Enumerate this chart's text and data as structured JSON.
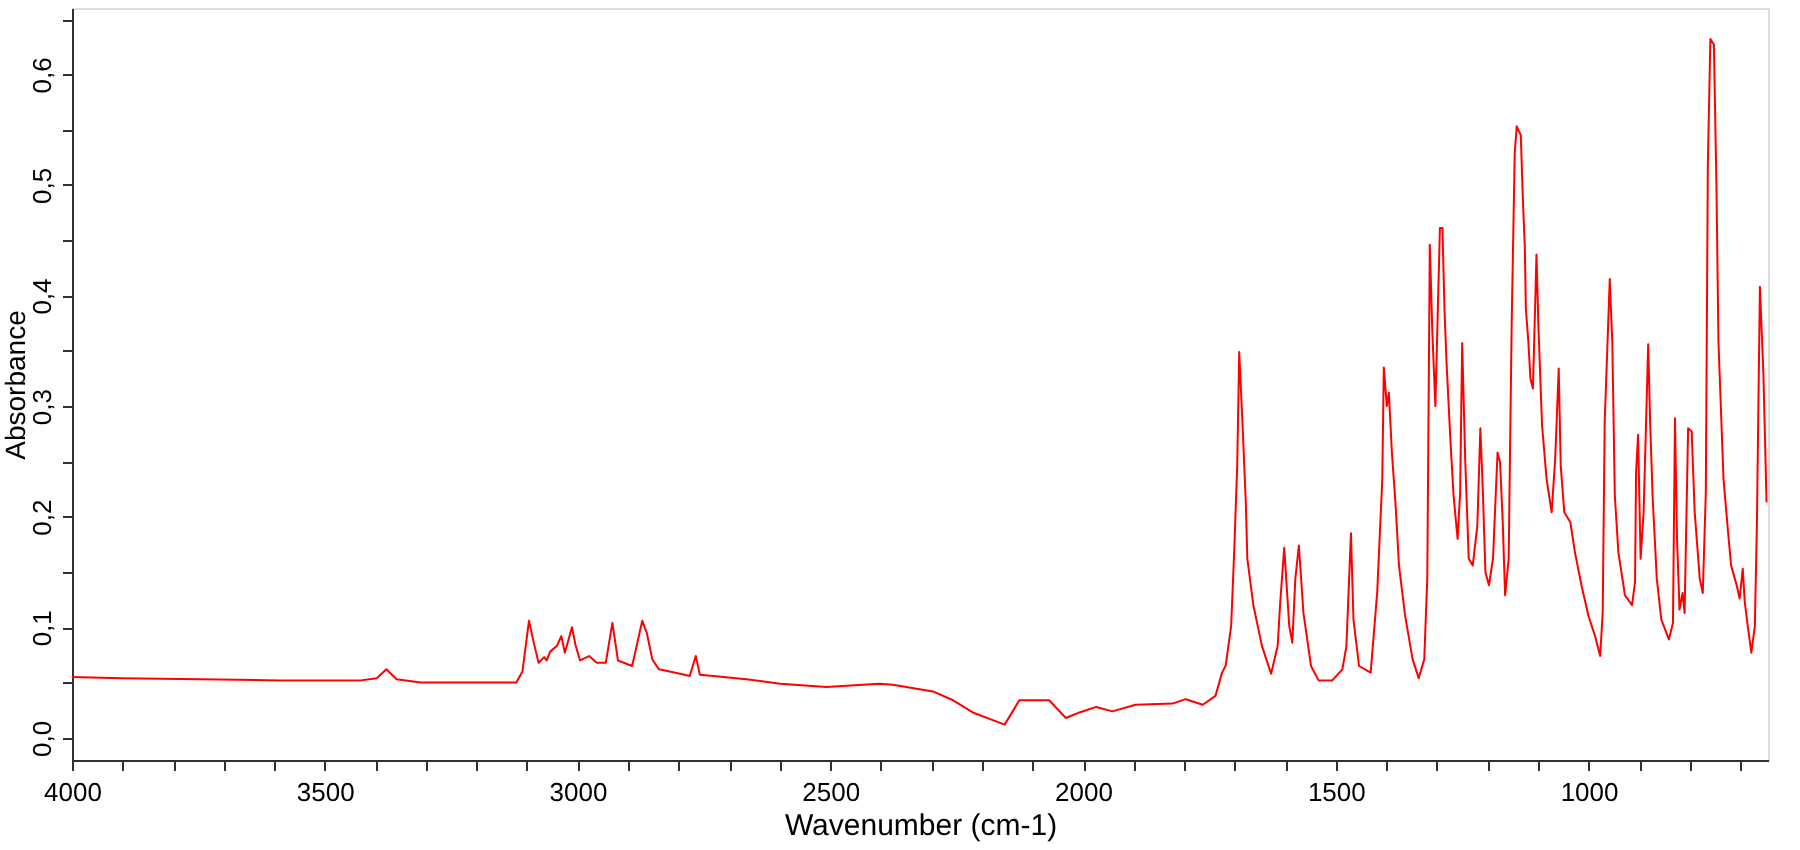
{
  "chart_data": {
    "type": "line",
    "xlabel": "Wavenumber (cm-1)",
    "ylabel": "Absorbance",
    "xlim": [
      4000,
      645
    ],
    "ylim": [
      -0.02,
      0.66
    ],
    "xticks": [
      4000,
      {
        "value": 3900,
        "label": null
      },
      {
        "value": 3800,
        "label": null
      },
      {
        "value": 3700,
        "label": null
      },
      {
        "value": 3600,
        "label": null
      },
      3500,
      {
        "value": 3400,
        "label": null
      },
      {
        "value": 3300,
        "label": null
      },
      {
        "value": 3200,
        "label": null
      },
      {
        "value": 3100,
        "label": null
      },
      3000,
      {
        "value": 2900,
        "label": null
      },
      {
        "value": 2800,
        "label": null
      },
      {
        "value": 2700,
        "label": null
      },
      {
        "value": 2600,
        "label": null
      },
      2500,
      {
        "value": 2400,
        "label": null
      },
      {
        "value": 2300,
        "label": null
      },
      {
        "value": 2200,
        "label": null
      },
      {
        "value": 2100,
        "label": null
      },
      2000,
      {
        "value": 1900,
        "label": null
      },
      {
        "value": 1800,
        "label": null
      },
      {
        "value": 1700,
        "label": null
      },
      {
        "value": 1600,
        "label": null
      },
      1500,
      {
        "value": 1400,
        "label": null
      },
      {
        "value": 1300,
        "label": null
      },
      {
        "value": 1200,
        "label": null
      },
      {
        "value": 1100,
        "label": null
      },
      1000,
      {
        "value": 900,
        "label": null
      },
      {
        "value": 800,
        "label": null
      },
      {
        "value": 700,
        "label": null
      }
    ],
    "yticks": [
      {
        "value": 0,
        "label": "0,0"
      },
      {
        "value": 0.05,
        "label": null
      },
      {
        "value": 0.1,
        "label": "0,1"
      },
      {
        "value": 0.15,
        "label": null
      },
      {
        "value": 0.2,
        "label": "0,2"
      },
      {
        "value": 0.25,
        "label": null
      },
      {
        "value": 0.3,
        "label": "0,3"
      },
      {
        "value": 0.35,
        "label": null
      },
      {
        "value": 0.4,
        "label": "0,4"
      },
      {
        "value": 0.45,
        "label": null
      },
      {
        "value": 0.5,
        "label": "0,5"
      },
      {
        "value": 0.55,
        "label": null
      },
      {
        "value": 0.6,
        "label": "0,6"
      },
      {
        "value": 0.65,
        "label": null
      }
    ],
    "x": [
      4000,
      3902,
      3745,
      3587,
      3429,
      3397,
      3378,
      3358,
      3310,
      3192,
      3121,
      3109,
      3096,
      3086,
      3077,
      3066,
      3061,
      3054,
      3041,
      3032,
      3025,
      3011,
      3004,
      2995,
      2977,
      2962,
      2944,
      2931,
      2920,
      2892,
      2883,
      2872,
      2863,
      2852,
      2839,
      2797,
      2778,
      2766,
      2758,
      2731,
      2666,
      2599,
      2508,
      2403,
      2376,
      2297,
      2257,
      2218,
      2155,
      2126,
      2067,
      2034,
      2007,
      1974,
      1942,
      1896,
      1823,
      1797,
      1763,
      1738,
      1725,
      1718,
      1707,
      1701,
      1695,
      1691,
      1685,
      1678,
      1675,
      1663,
      1646,
      1628,
      1615,
      1610,
      1602,
      1592,
      1586,
      1580,
      1573,
      1564,
      1549,
      1534,
      1507,
      1487,
      1479,
      1470,
      1465,
      1454,
      1431,
      1418,
      1408,
      1405,
      1399,
      1395,
      1389,
      1382,
      1375,
      1363,
      1348,
      1336,
      1325,
      1319,
      1314,
      1309,
      1303,
      1294,
      1289,
      1285,
      1281,
      1273,
      1267,
      1259,
      1254,
      1250,
      1244,
      1237,
      1229,
      1220,
      1214,
      1209,
      1204,
      1197,
      1189,
      1180,
      1175,
      1170,
      1165,
      1158,
      1152,
      1146,
      1142,
      1134,
      1130,
      1126,
      1124,
      1119,
      1115,
      1110,
      1103,
      1099,
      1092,
      1083,
      1073,
      1066,
      1059,
      1055,
      1048,
      1036,
      1027,
      1014,
      1000,
      987,
      977,
      972,
      968,
      958,
      953,
      948,
      941,
      928,
      914,
      908,
      906,
      902,
      897,
      891,
      882,
      878,
      873,
      865,
      856,
      841,
      833,
      829,
      825,
      820,
      814,
      810,
      803,
      796,
      790,
      780,
      774,
      768,
      764,
      759,
      752,
      747,
      743,
      733,
      724,
      718,
      707,
      701,
      695,
      691,
      685,
      678,
      671,
      667,
      661,
      654,
      649,
      648
    ],
    "series": [
      {
        "color": "#ff0000",
        "values": [
          0.055,
          0.054,
          0.053,
          0.052,
          0.052,
          0.054,
          0.062,
          0.053,
          0.05,
          0.05,
          0.05,
          0.06,
          0.106,
          0.085,
          0.068,
          0.073,
          0.07,
          0.078,
          0.083,
          0.092,
          0.077,
          0.1,
          0.084,
          0.07,
          0.074,
          0.068,
          0.068,
          0.104,
          0.07,
          0.065,
          0.083,
          0.106,
          0.095,
          0.071,
          0.062,
          0.058,
          0.056,
          0.074,
          0.057,
          0.056,
          0.053,
          0.049,
          0.046,
          0.049,
          0.048,
          0.042,
          0.034,
          0.023,
          0.012,
          0.034,
          0.034,
          0.018,
          0.023,
          0.028,
          0.024,
          0.03,
          0.031,
          0.035,
          0.03,
          0.038,
          0.059,
          0.065,
          0.101,
          0.168,
          0.246,
          0.349,
          0.289,
          0.213,
          0.162,
          0.12,
          0.083,
          0.058,
          0.083,
          0.122,
          0.172,
          0.101,
          0.086,
          0.144,
          0.174,
          0.113,
          0.065,
          0.052,
          0.052,
          0.062,
          0.083,
          0.185,
          0.107,
          0.065,
          0.059,
          0.132,
          0.234,
          0.335,
          0.3,
          0.312,
          0.258,
          0.213,
          0.156,
          0.111,
          0.071,
          0.054,
          0.071,
          0.144,
          0.446,
          0.367,
          0.3,
          0.461,
          0.461,
          0.388,
          0.34,
          0.267,
          0.219,
          0.18,
          0.222,
          0.357,
          0.252,
          0.162,
          0.156,
          0.192,
          0.28,
          0.222,
          0.15,
          0.138,
          0.162,
          0.258,
          0.249,
          0.198,
          0.129,
          0.162,
          0.376,
          0.529,
          0.553,
          0.545,
          0.488,
          0.443,
          0.388,
          0.358,
          0.325,
          0.316,
          0.437,
          0.37,
          0.283,
          0.234,
          0.204,
          0.252,
          0.334,
          0.246,
          0.204,
          0.195,
          0.168,
          0.138,
          0.11,
          0.092,
          0.074,
          0.113,
          0.286,
          0.415,
          0.358,
          0.219,
          0.168,
          0.129,
          0.12,
          0.141,
          0.24,
          0.274,
          0.162,
          0.204,
          0.356,
          0.283,
          0.216,
          0.144,
          0.107,
          0.089,
          0.104,
          0.289,
          0.18,
          0.116,
          0.131,
          0.113,
          0.28,
          0.277,
          0.204,
          0.144,
          0.131,
          0.222,
          0.518,
          0.632,
          0.627,
          0.5,
          0.358,
          0.234,
          0.186,
          0.156,
          0.138,
          0.126,
          0.153,
          0.123,
          0.101,
          0.077,
          0.101,
          0.192,
          0.408,
          0.328,
          0.234,
          0.213
        ]
      }
    ]
  }
}
